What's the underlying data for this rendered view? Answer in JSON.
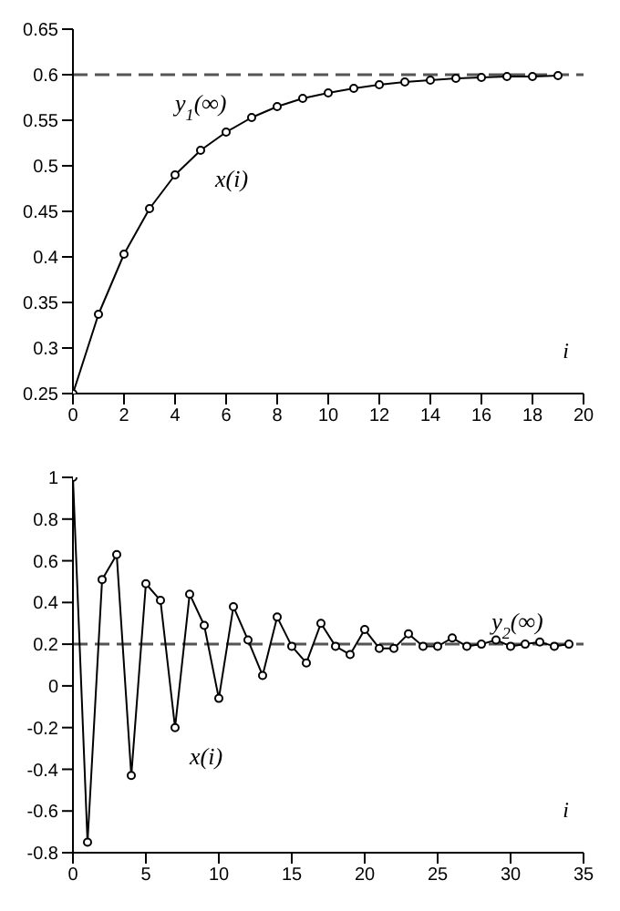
{
  "chart_data": [
    {
      "type": "line",
      "xlabel": "i",
      "x": [
        0,
        1,
        2,
        3,
        4,
        5,
        6,
        7,
        8,
        9,
        10,
        11,
        12,
        13,
        14,
        15,
        16,
        17,
        18,
        19
      ],
      "series": [
        {
          "color": "#000000",
          "values": [
            0.25,
            0.337,
            0.403,
            0.453,
            0.49,
            0.517,
            0.537,
            0.553,
            0.565,
            0.574,
            0.58,
            0.585,
            0.589,
            0.592,
            0.594,
            0.596,
            0.597,
            0.598,
            0.598,
            0.599
          ]
        }
      ],
      "xlim": [
        0,
        20
      ],
      "xticks": [
        0,
        2,
        4,
        6,
        8,
        10,
        12,
        14,
        16,
        18,
        20
      ],
      "ylim": [
        0.25,
        0.65
      ],
      "yticks": [
        0.25,
        0.3,
        0.35,
        0.4,
        0.45,
        0.5,
        0.55,
        0.6,
        0.65
      ],
      "ref_lines": [
        {
          "axis": "y",
          "value": 0.6,
          "label": "y$_{1}$(∞)",
          "color": "#555555",
          "line_style": "dashed"
        }
      ],
      "annotations": [
        {
          "text": "x(i)",
          "x": 5,
          "y": 0.517
        }
      ],
      "marker": "circle",
      "line_style": "solid",
      "grid": false,
      "legend": false
    },
    {
      "type": "line",
      "xlabel": "i",
      "x": [
        0,
        1,
        2,
        3,
        4,
        5,
        6,
        7,
        8,
        9,
        10,
        11,
        12,
        13,
        14,
        15,
        16,
        17,
        18,
        19,
        20,
        21,
        22,
        23,
        24,
        25,
        26,
        27,
        28,
        29,
        30,
        31,
        32,
        33,
        34
      ],
      "series": [
        {
          "color": "#000000",
          "values": [
            1,
            -0.75,
            0.51,
            0.63,
            -0.43,
            0.49,
            0.41,
            -0.2,
            0.44,
            0.29,
            -0.06,
            0.38,
            0.22,
            0.05,
            0.33,
            0.19,
            0.11,
            0.3,
            0.19,
            0.15,
            0.27,
            0.18,
            0.18,
            0.25,
            0.19,
            0.19,
            0.23,
            0.19,
            0.2,
            0.22,
            0.19,
            0.2,
            0.21,
            0.19,
            0.2
          ]
        }
      ],
      "xlim": [
        0,
        35
      ],
      "xticks": [
        0,
        5,
        10,
        15,
        20,
        25,
        30,
        35
      ],
      "ylim": [
        -0.8,
        1
      ],
      "yticks": [
        -0.8,
        -0.6,
        -0.4,
        -0.2,
        0,
        0.2,
        0.4,
        0.6,
        0.8,
        1
      ],
      "ref_lines": [
        {
          "axis": "y",
          "value": 0.2,
          "label": "y$_{2}$(∞)",
          "color": "#555555",
          "line_style": "dashed"
        }
      ],
      "annotations": [
        {
          "text": "x(i)",
          "x": 7,
          "y": -0.2
        }
      ],
      "marker": "circle",
      "line_style": "solid",
      "grid": false,
      "legend": false
    }
  ]
}
